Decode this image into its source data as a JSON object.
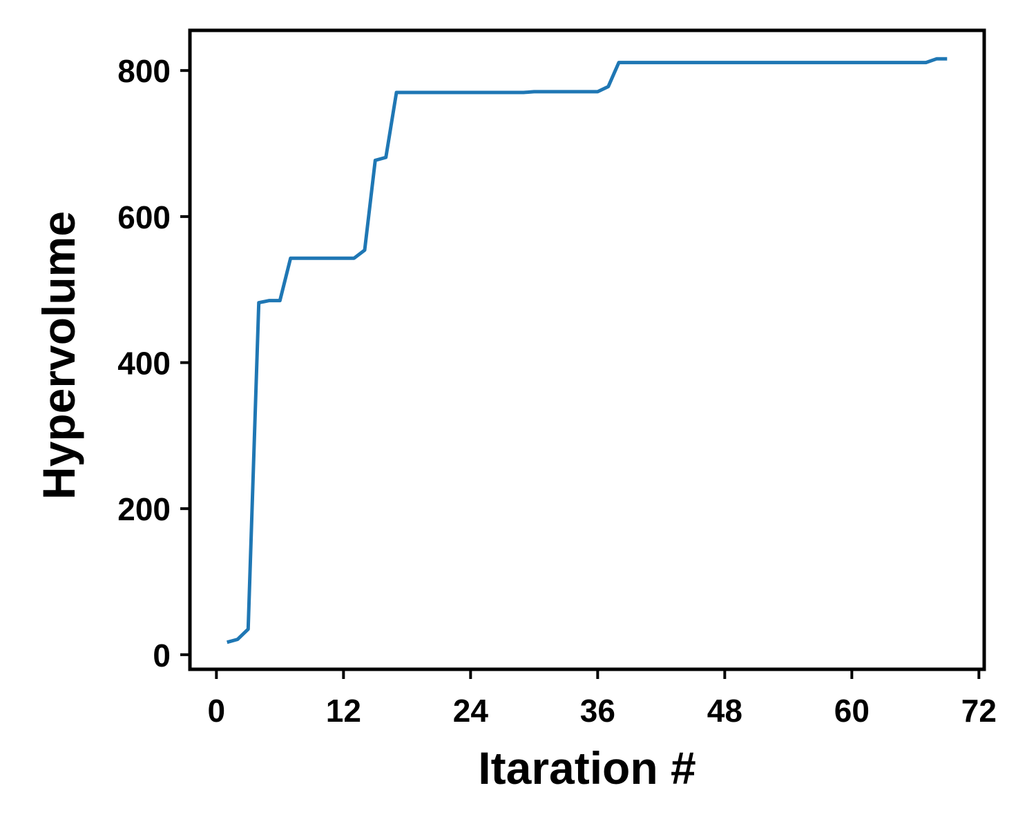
{
  "chart_data": {
    "type": "line",
    "title": "",
    "xlabel": "Itaration #",
    "ylabel": "Hypervolume",
    "xlim": [
      -2.5,
      72.5
    ],
    "ylim": [
      -20,
      855
    ],
    "xticks": [
      0,
      12,
      24,
      36,
      48,
      60,
      72
    ],
    "yticks": [
      0,
      200,
      400,
      600,
      800
    ],
    "grid": false,
    "colors": {
      "line": "#1f77b4",
      "axes": "#000000"
    },
    "series": [
      {
        "x": [
          1,
          2,
          3,
          4,
          5,
          6,
          7,
          8,
          9,
          10,
          11,
          12,
          13,
          14,
          15,
          16,
          17,
          18,
          19,
          20,
          21,
          22,
          23,
          24,
          25,
          26,
          27,
          28,
          29,
          30,
          31,
          32,
          33,
          34,
          35,
          36,
          37,
          38,
          39,
          40,
          41,
          42,
          43,
          44,
          45,
          46,
          47,
          48,
          49,
          50,
          51,
          52,
          53,
          54,
          55,
          56,
          57,
          58,
          59,
          60,
          61,
          62,
          63,
          64,
          65,
          66,
          67,
          68,
          69
        ],
        "values": [
          17,
          21,
          35,
          482,
          485,
          485,
          543,
          543,
          543,
          543,
          543,
          543,
          543,
          554,
          677,
          681,
          770,
          770,
          770,
          770,
          770,
          770,
          770,
          770,
          770,
          770,
          770,
          770,
          770,
          771,
          771,
          771,
          771,
          771,
          771,
          771,
          778,
          811,
          811,
          811,
          811,
          811,
          811,
          811,
          811,
          811,
          811,
          811,
          811,
          811,
          811,
          811,
          811,
          811,
          811,
          811,
          811,
          811,
          811,
          811,
          811,
          811,
          811,
          811,
          811,
          811,
          811,
          816,
          816
        ]
      }
    ]
  }
}
